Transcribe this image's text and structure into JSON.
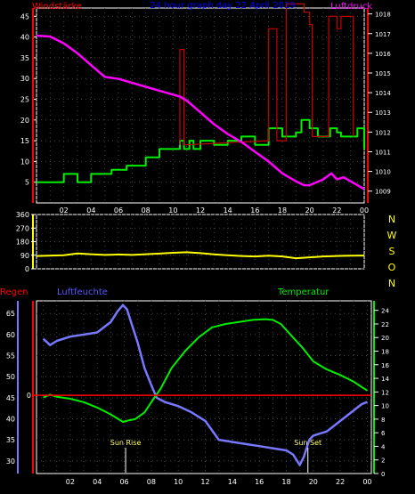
{
  "chart_data": [
    {
      "type": "line",
      "title": "24 hour graph day 22 April 2019",
      "left_axis_label": "Windstärke",
      "right_axis_label": "Luftdruck",
      "x_ticks": [
        "02",
        "04",
        "06",
        "08",
        "10",
        "12",
        "14",
        "16",
        "18",
        "20",
        "22",
        "00"
      ],
      "y_left_ticks": [
        5,
        10,
        15,
        20,
        25,
        30,
        35,
        40,
        45
      ],
      "y_left_range": [
        0,
        47
      ],
      "y_right_ticks": [
        1009,
        1010,
        1011,
        1012,
        1013,
        1014,
        1015,
        1016,
        1017,
        1018
      ],
      "y_right_range": [
        1008.4,
        1018.3
      ],
      "grid": true,
      "colors": {
        "wind": "#00ee00",
        "gust": "#cc0000",
        "pressure": "#ff00ff",
        "left_label": "#ff0000",
        "right_label": "#ff00ff",
        "title": "#0000ff"
      },
      "series": [
        {
          "key": "wind",
          "step": true,
          "points": [
            [
              0,
              5
            ],
            [
              2,
              5
            ],
            [
              2,
              7
            ],
            [
              3,
              7
            ],
            [
              3,
              5
            ],
            [
              4,
              5
            ],
            [
              4,
              7
            ],
            [
              5.5,
              7
            ],
            [
              5.5,
              8
            ],
            [
              6.6,
              8
            ],
            [
              6.6,
              9
            ],
            [
              8,
              9
            ],
            [
              8,
              11
            ],
            [
              9,
              11
            ],
            [
              9,
              13
            ],
            [
              10.5,
              13
            ],
            [
              10.5,
              15
            ],
            [
              10.8,
              15
            ],
            [
              10.8,
              13
            ],
            [
              11.2,
              13
            ],
            [
              11.2,
              15
            ],
            [
              11.5,
              15
            ],
            [
              11.5,
              13
            ],
            [
              12,
              13
            ],
            [
              12,
              15
            ],
            [
              13,
              15
            ],
            [
              13,
              14
            ],
            [
              14,
              14
            ],
            [
              14,
              15
            ],
            [
              15,
              15
            ],
            [
              15,
              16
            ],
            [
              16,
              16
            ],
            [
              16,
              14
            ],
            [
              17,
              14
            ],
            [
              17,
              18
            ],
            [
              18,
              18
            ],
            [
              18,
              16
            ],
            [
              19,
              16
            ],
            [
              19,
              17
            ],
            [
              19.4,
              17
            ],
            [
              19.4,
              20
            ],
            [
              20,
              20
            ],
            [
              20,
              18
            ],
            [
              20.6,
              18
            ],
            [
              20.6,
              16
            ],
            [
              21.5,
              16
            ],
            [
              21.5,
              18
            ],
            [
              22,
              18
            ],
            [
              22,
              17
            ],
            [
              22.3,
              17
            ],
            [
              22.3,
              16
            ],
            [
              23.5,
              16
            ],
            [
              23.5,
              18
            ],
            [
              24,
              18
            ],
            [
              24,
              13
            ]
          ]
        },
        {
          "key": "gust",
          "step": true,
          "points": [
            [
              10.5,
              14
            ],
            [
              10.5,
              37
            ],
            [
              10.8,
              37
            ],
            [
              10.8,
              14
            ],
            [
              17,
              15
            ],
            [
              17,
              42
            ],
            [
              17.6,
              42
            ],
            [
              17.6,
              15
            ],
            [
              18.3,
              15
            ],
            [
              18.3,
              48
            ],
            [
              19,
              48
            ],
            [
              19,
              48
            ],
            [
              19.6,
              48
            ],
            [
              19.6,
              46
            ],
            [
              20,
              46
            ],
            [
              20,
              43
            ],
            [
              20.2,
              43
            ],
            [
              20.2,
              16
            ],
            [
              21.4,
              16
            ],
            [
              21.4,
              45
            ],
            [
              22,
              45
            ],
            [
              22,
              42
            ],
            [
              22.3,
              42
            ],
            [
              22.3,
              45
            ],
            [
              23.2,
              45
            ],
            [
              23.2,
              16
            ]
          ]
        },
        {
          "key": "pressure",
          "points": [
            [
              0,
              1016.9
            ],
            [
              1,
              1016.85
            ],
            [
              2,
              1016.5
            ],
            [
              3,
              1016
            ],
            [
              4,
              1015.4
            ],
            [
              5,
              1014.8
            ],
            [
              6,
              1014.7
            ],
            [
              7,
              1014.5
            ],
            [
              8,
              1014.3
            ],
            [
              9,
              1014.1
            ],
            [
              10,
              1013.9
            ],
            [
              10.5,
              1013.8
            ],
            [
              11,
              1013.6
            ],
            [
              12,
              1013
            ],
            [
              13,
              1012.4
            ],
            [
              14,
              1011.9
            ],
            [
              15,
              1011.5
            ],
            [
              16,
              1011
            ],
            [
              17,
              1010.5
            ],
            [
              18,
              1009.9
            ],
            [
              19,
              1009.5
            ],
            [
              19.6,
              1009.3
            ],
            [
              20,
              1009.3
            ],
            [
              21,
              1009.6
            ],
            [
              21.6,
              1009.9
            ],
            [
              22,
              1009.6
            ],
            [
              22.5,
              1009.7
            ],
            [
              23,
              1009.5
            ],
            [
              23.5,
              1009.3
            ],
            [
              24,
              1009.1
            ]
          ]
        }
      ]
    },
    {
      "type": "line",
      "side_label": "N W S O N",
      "y_ticks": [
        0,
        90,
        180,
        270,
        360
      ],
      "y_range": [
        0,
        360
      ],
      "colors": {
        "direction": "#ffff00",
        "side_label": "#ffff00"
      },
      "series": [
        {
          "key": "direction",
          "points": [
            [
              0,
              85
            ],
            [
              2,
              90
            ],
            [
              3,
              102
            ],
            [
              4,
              97
            ],
            [
              5,
              92
            ],
            [
              6,
              95
            ],
            [
              7,
              92
            ],
            [
              8,
              97
            ],
            [
              9,
              101
            ],
            [
              10,
              106
            ],
            [
              11,
              110
            ],
            [
              12,
              104
            ],
            [
              13,
              96
            ],
            [
              14,
              90
            ],
            [
              15,
              85
            ],
            [
              16,
              82
            ],
            [
              17,
              87
            ],
            [
              18,
              82
            ],
            [
              19,
              70
            ],
            [
              20,
              76
            ],
            [
              21,
              82
            ],
            [
              22,
              85
            ],
            [
              23,
              87
            ],
            [
              24,
              88
            ]
          ]
        }
      ]
    },
    {
      "type": "line",
      "labels": {
        "regen": "Regen",
        "luftfeuchte": "Luftfeuchte",
        "temperatur": "Temperatur",
        "sunrise": "Sun Rise",
        "sunset": "Sun Set"
      },
      "x_ticks": [
        "02",
        "04",
        "06",
        "08",
        "10",
        "12",
        "14",
        "16",
        "18",
        "20",
        "22",
        "00"
      ],
      "rain_tick": "0",
      "y_left_ticks": [
        30,
        35,
        40,
        45,
        50,
        55,
        60,
        65
      ],
      "y_left_range": [
        27,
        68
      ],
      "y_right_ticks": [
        0,
        2,
        4,
        6,
        8,
        10,
        12,
        14,
        16,
        18,
        20,
        22,
        24
      ],
      "y_right_range": [
        0,
        25.4
      ],
      "sunrise_x": 6.1,
      "sunset_x": 19.6,
      "colors": {
        "humidity": "#7777ff",
        "temperature": "#00ee00",
        "rain": "#ff0000",
        "regen_label": "#ff0000",
        "luftfeuchte_label": "#5555ff",
        "temperatur_label": "#00ee00",
        "sun_label": "#ffff66"
      },
      "series": [
        {
          "key": "humidity",
          "points": [
            [
              0,
              59
            ],
            [
              0.5,
              57.5
            ],
            [
              1,
              58.5
            ],
            [
              2,
              59.5
            ],
            [
              3,
              60
            ],
            [
              4,
              60.5
            ],
            [
              4.6,
              62
            ],
            [
              5,
              63
            ],
            [
              5.5,
              65.5
            ],
            [
              5.9,
              67
            ],
            [
              6.2,
              66
            ],
            [
              6.5,
              63
            ],
            [
              7,
              58
            ],
            [
              7.5,
              52
            ],
            [
              8,
              48
            ],
            [
              8.4,
              45
            ],
            [
              9,
              44
            ],
            [
              10,
              43
            ],
            [
              11,
              41.5
            ],
            [
              12,
              39.5
            ],
            [
              13,
              35
            ],
            [
              14,
              34.5
            ],
            [
              15,
              34
            ],
            [
              16,
              33.5
            ],
            [
              17,
              33
            ],
            [
              18,
              32.5
            ],
            [
              18.5,
              31.5
            ],
            [
              19,
              29
            ],
            [
              19.3,
              31
            ],
            [
              19.7,
              35
            ],
            [
              20,
              36
            ],
            [
              21,
              37
            ],
            [
              22,
              39.5
            ],
            [
              23,
              42
            ],
            [
              23.6,
              43.5
            ],
            [
              24,
              44
            ]
          ]
        },
        {
          "key": "temperature",
          "points": [
            [
              0,
              11.2
            ],
            [
              0.5,
              11.6
            ],
            [
              1,
              11.3
            ],
            [
              2,
              11
            ],
            [
              3,
              10.5
            ],
            [
              4,
              9.7
            ],
            [
              5,
              8.7
            ],
            [
              5.9,
              7.6
            ],
            [
              6.3,
              7.8
            ],
            [
              6.8,
              8
            ],
            [
              7.5,
              9
            ],
            [
              8,
              10.5
            ],
            [
              8.7,
              12.5
            ],
            [
              9.5,
              15.5
            ],
            [
              10.5,
              18
            ],
            [
              11.5,
              20
            ],
            [
              12.5,
              21.5
            ],
            [
              13.5,
              22
            ],
            [
              14.5,
              22.3
            ],
            [
              15.5,
              22.6
            ],
            [
              16.5,
              22.7
            ],
            [
              17,
              22.6
            ],
            [
              17.6,
              22
            ],
            [
              18.5,
              20
            ],
            [
              19.2,
              18.5
            ],
            [
              20,
              16.5
            ],
            [
              21,
              15.3
            ],
            [
              22,
              14.5
            ],
            [
              23,
              13.5
            ],
            [
              23.6,
              12.7
            ],
            [
              24,
              12.2
            ]
          ]
        },
        {
          "key": "rain",
          "points": [
            [
              -0.5,
              0
            ],
            [
              24,
              0
            ]
          ]
        }
      ]
    }
  ]
}
